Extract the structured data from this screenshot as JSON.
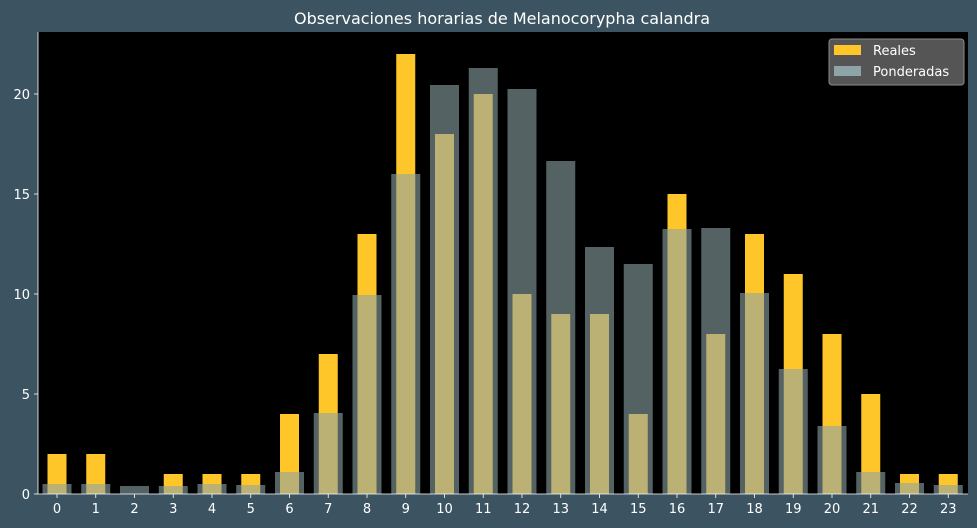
{
  "chart_data": {
    "type": "bar",
    "title": "Observaciones horarias de Melanocorypha calandra",
    "xlabel": "",
    "ylabel": "",
    "categories": [
      "0",
      "1",
      "2",
      "3",
      "4",
      "5",
      "6",
      "7",
      "8",
      "9",
      "10",
      "11",
      "12",
      "13",
      "14",
      "15",
      "16",
      "17",
      "18",
      "19",
      "20",
      "21",
      "22",
      "23"
    ],
    "series": [
      {
        "name": "Reales",
        "color": "#ffc629",
        "values": [
          2,
          2,
          0,
          1,
          1,
          1,
          4,
          7,
          13,
          22,
          18,
          20,
          10,
          9,
          9,
          4,
          15,
          8,
          13,
          11,
          8,
          5,
          1,
          1
        ]
      },
      {
        "name": "Ponderadas",
        "color": "#8ea4a6",
        "values": [
          0.5,
          0.5,
          0.4,
          0.4,
          0.5,
          0.45,
          1.1,
          4.05,
          9.95,
          16.0,
          20.45,
          21.3,
          20.25,
          16.65,
          12.35,
          11.5,
          13.25,
          13.3,
          10.05,
          6.25,
          3.4,
          1.1,
          0.55,
          0.45
        ]
      }
    ],
    "yticks": [
      0,
      5,
      10,
      15,
      20
    ],
    "ylim": [
      0,
      23.1
    ],
    "legend_position": "top-right",
    "plot_background": "#000000",
    "figure_background": "#3c5461",
    "grid": false
  }
}
